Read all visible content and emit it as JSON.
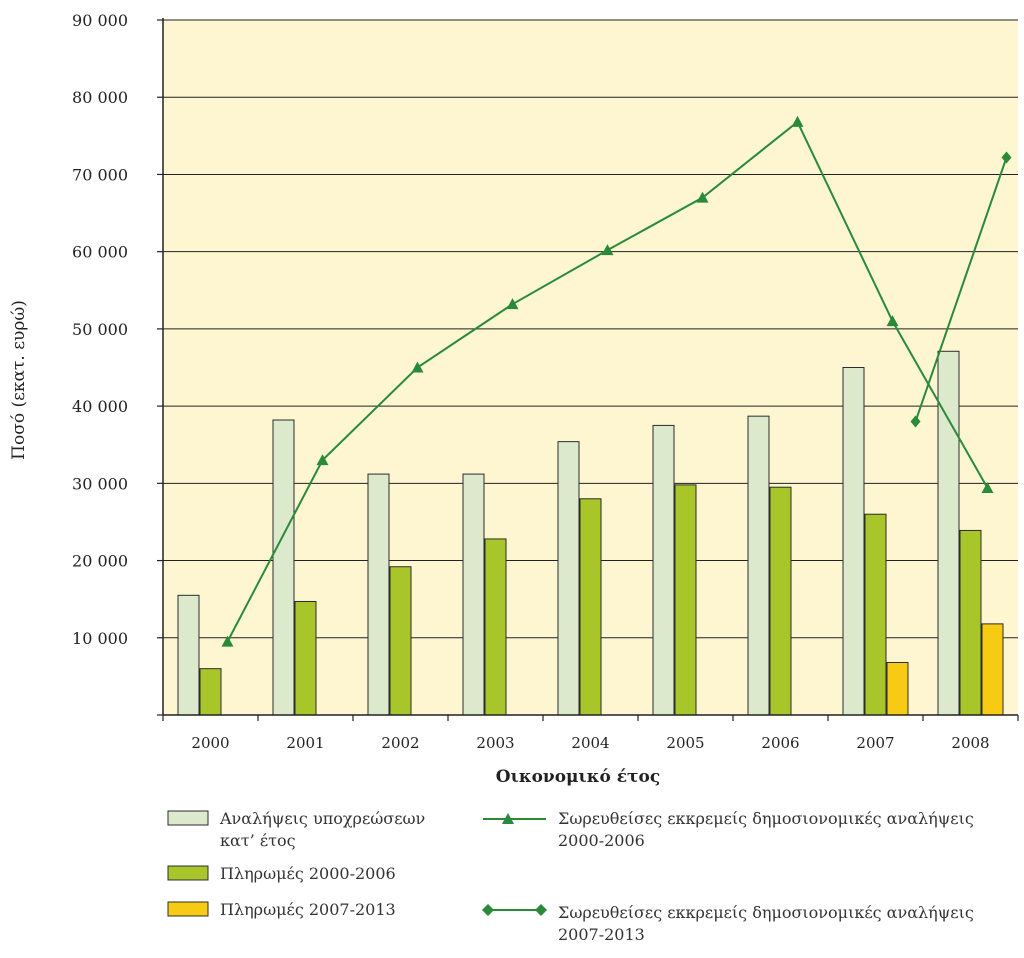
{
  "chart_data": {
    "type": "bar",
    "title": "",
    "xlabel": "Οικονομικό έτος",
    "ylabel": "Ποσό (εκατ. ευρώ)",
    "ylim": [
      0,
      90000
    ],
    "yticks": [
      "",
      "10 000",
      "20 000",
      "30 000",
      "40 000",
      "50 000",
      "60 000",
      "70 000",
      "80 000",
      "90 000"
    ],
    "categories": [
      "2000",
      "2001",
      "2002",
      "2003",
      "2004",
      "2005",
      "2006",
      "2007",
      "2008"
    ],
    "grid": true,
    "legend_position": "bottom",
    "colors": {
      "plot_background": "#fdf6d0",
      "bar_commitments": "#dde9cc",
      "bar_payments_2000_2006": "#a8c62a",
      "bar_payments_2007_2013": "#f7cb14",
      "line": "#2a8a3a"
    },
    "series": [
      {
        "name": "Αναλήψεις υποχρεώσεων κατ’ έτος",
        "kind": "bar",
        "values": [
          15500,
          38200,
          31200,
          31200,
          35400,
          37500,
          38700,
          45000,
          47100
        ]
      },
      {
        "name": "Πληρωμές 2000-2006",
        "kind": "bar",
        "values": [
          6000,
          14700,
          19200,
          22800,
          28000,
          29800,
          29500,
          26000,
          23900
        ]
      },
      {
        "name": "Πληρωμές 2007-2013",
        "kind": "bar",
        "values": [
          null,
          null,
          null,
          null,
          null,
          null,
          null,
          6800,
          11800
        ]
      },
      {
        "name": "Σωρευθείσες εκκρεμείς δημοσιονομικές αναλήψεις 2000-2006",
        "kind": "line",
        "marker": "triangle",
        "values": [
          9500,
          33000,
          45000,
          53200,
          60200,
          67000,
          76800,
          51000,
          29400
        ]
      },
      {
        "name": "Σωρευθείσες εκκρεμείς δημοσιονομικές αναλήψεις 2007-2013",
        "kind": "line",
        "marker": "diamond",
        "values": [
          null,
          null,
          null,
          null,
          null,
          null,
          null,
          38000,
          72200
        ]
      }
    ],
    "legend": {
      "bar_commitments_lines": [
        "Αναλήψεις υποχρεώσεων",
        "κατ’ έτος"
      ],
      "bar_payments_2000_2006": "Πληρωμές 2000-2006",
      "bar_payments_2007_2013": "Πληρωμές 2007-2013",
      "line_2000_2006_lines": [
        "Σωρευθείσες εκκρεμείς δημοσιονομικές αναλήψεις",
        "2000-2006"
      ],
      "line_2007_2013_lines": [
        "Σωρευθείσες εκκρεμείς δημοσιονομικές αναλήψεις",
        "2007-2013"
      ]
    }
  }
}
